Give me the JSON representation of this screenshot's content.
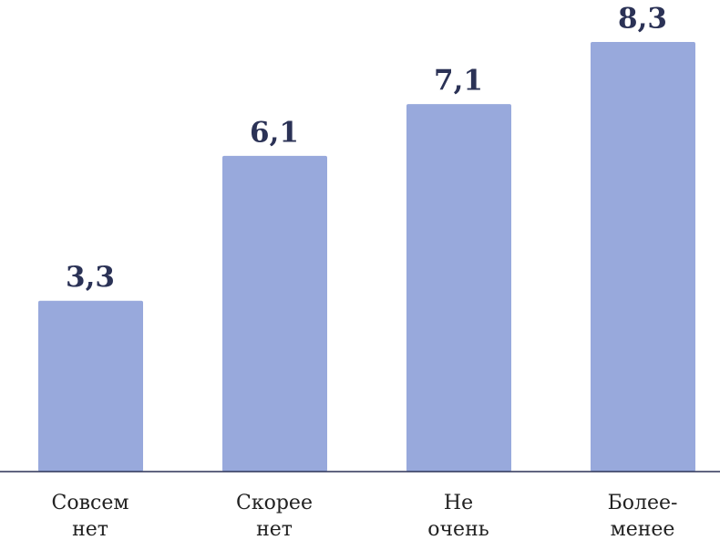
{
  "chart_data": {
    "type": "bar",
    "categories": [
      [
        "Совсем",
        "нет"
      ],
      [
        "Скорее",
        "нет"
      ],
      [
        "Не",
        "очень"
      ],
      [
        "Более-",
        "менее"
      ]
    ],
    "values": [
      3.3,
      6.1,
      7.1,
      8.3
    ],
    "value_labels": [
      "3,3",
      "6,1",
      "7,1",
      "8,3"
    ],
    "color": "#98a9dc",
    "ylim": [
      0,
      8.6
    ]
  }
}
